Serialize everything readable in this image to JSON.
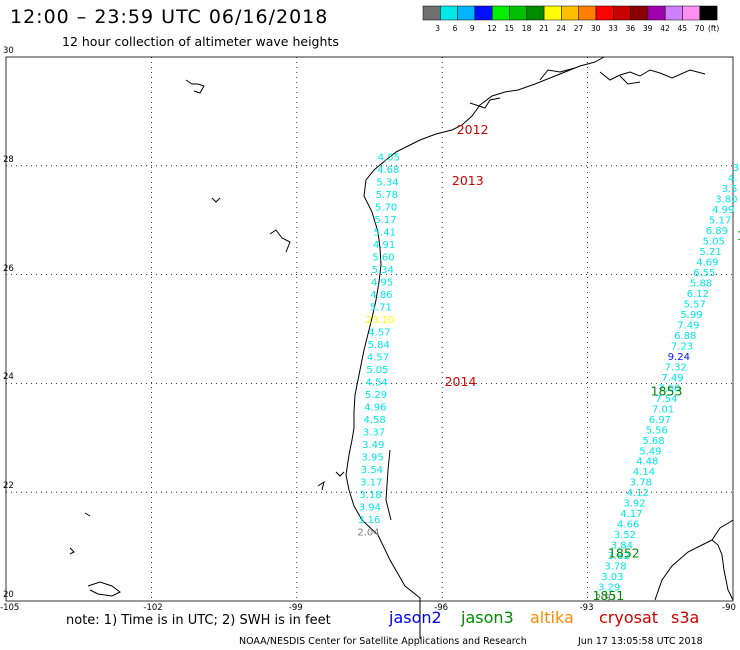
{
  "title": "12:00 – 23:59 UTC 06/16/2018",
  "subtitle": "12 hour collection of altimeter wave heights",
  "legend": {
    "colors": [
      "#707070",
      "#00e8e8",
      "#00b4ff",
      "#0010ff",
      "#00f000",
      "#00c000",
      "#008a00",
      "#ffff00",
      "#ffc000",
      "#ff8000",
      "#ff0000",
      "#c80000",
      "#8a0000",
      "#a000b0",
      "#d080ff",
      "#ff90f0",
      "#000000"
    ],
    "labels": [
      "3",
      "6",
      "9",
      "12",
      "15",
      "18",
      "21",
      "24",
      "27",
      "30",
      "33",
      "36",
      "39",
      "42",
      "45",
      "70",
      "(ft)"
    ]
  },
  "axes": {
    "lon_labels": [
      "-105",
      "-102",
      "-99",
      "-96",
      "-93",
      "-90"
    ],
    "lat_labels": [
      "30",
      "28",
      "26",
      "24",
      "22",
      "20"
    ]
  },
  "footer": {
    "note": "note: 1) Time is in UTC; 2) SWH is in feet",
    "satellites": [
      {
        "name": "jason2",
        "color": "#0000ff"
      },
      {
        "name": "jason3",
        "color": "#008a00"
      },
      {
        "name": "altika",
        "color": "#ff8c00"
      },
      {
        "name": "cryosat",
        "color": "#d00000"
      },
      {
        "name": "s3a",
        "color": "#d00000"
      }
    ],
    "credit": "NOAA/NESDIS Center for Satellite Applications and Research",
    "timestamp": "Jun 17 13:05:58 UTC 2018"
  },
  "pass_labels": [
    {
      "text": "2012",
      "color": "#d00000",
      "lon": -95.7,
      "lat": 28.58
    },
    {
      "text": "2013",
      "color": "#d00000",
      "lon": -95.8,
      "lat": 27.65
    },
    {
      "text": "2014",
      "color": "#d00000",
      "lon": -95.95,
      "lat": 23.95
    },
    {
      "text": "1853",
      "color": "#008a00",
      "lon": -91.7,
      "lat": 23.78
    },
    {
      "text": "1852",
      "color": "#008a00",
      "lon": -92.58,
      "lat": 20.8
    },
    {
      "text": "1851",
      "color": "#008a00",
      "lon": -92.9,
      "lat": 20.02
    },
    {
      "text": "1",
      "color": "#008a00",
      "lon": -89.92,
      "lat": 26.64
    }
  ],
  "track_west": {
    "lon_start": -97.1,
    "lat_start": 28.1,
    "lon_end": -97.52,
    "lat_end": 21.2,
    "color": "#00e8e8",
    "values": [
      "4.55",
      "4.68",
      "5.34",
      "5.78",
      "5.70",
      "5.17",
      "5.41",
      "4.91",
      "5.60",
      "5.34",
      "4.95",
      "4.86",
      "5.71",
      "23.10",
      "4.57",
      "5.84",
      "4.57",
      "5.05",
      "4.54",
      "5.29",
      "4.96",
      "4.58",
      "3.37",
      "3.49",
      "3.95",
      "3.54",
      "3.17",
      "3.18",
      "3.94",
      "3.16",
      "2.04"
    ],
    "special_colors": {
      "13": "#ffff00",
      "30": "#808080"
    }
  },
  "track_east": {
    "lon_start": -89.94,
    "lat_start": 27.9,
    "lon_end": -92.62,
    "lat_end": 20.0,
    "color": "#00e8e8",
    "values": [
      "3",
      "4.",
      "3.5",
      "3.80",
      "4.99",
      "5.17",
      "6.89",
      "5.05",
      "5.21",
      "4.69",
      "6.55",
      "5.88",
      "6.12",
      "5.57",
      "5.99",
      "7.49",
      "6.88",
      "7.23",
      "9.24",
      "7.32",
      "7.49",
      "7.60",
      "7.54",
      "7.01",
      "6.97",
      "5.56",
      "5.68",
      "5.49",
      "4.48",
      "4.14",
      "3.78",
      "4.12",
      "3.92",
      "4.17",
      "4.66",
      "3.52",
      "3.84",
      "3.82",
      "3.78",
      "3.03",
      "3.29",
      "2.91"
    ],
    "special_colors": {
      "18": "#0010ff",
      "41": "#808080"
    }
  }
}
